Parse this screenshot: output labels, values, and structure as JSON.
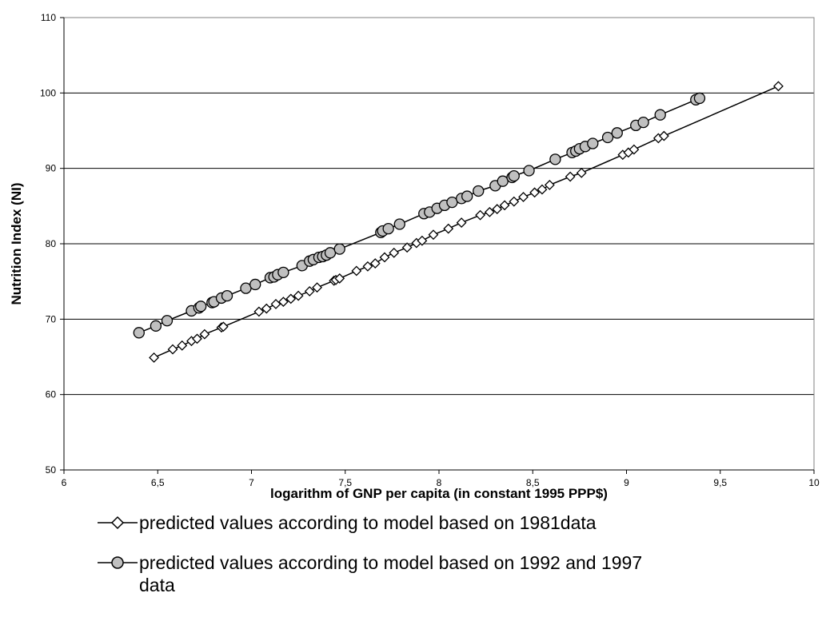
{
  "chart_data": {
    "type": "scatter",
    "xlabel": "logarithm of GNP per capita (in constant 1995 PPP$)",
    "ylabel": "Nutrition Index (NI)",
    "xlim": [
      6,
      10
    ],
    "ylim": [
      50,
      110
    ],
    "x_ticks": [
      "6",
      "6,5",
      "7",
      "7,5",
      "8",
      "8,5",
      "9",
      "9,5",
      "10"
    ],
    "y_ticks": [
      "50",
      "60",
      "70",
      "80",
      "90",
      "100",
      "110"
    ],
    "grid": "horizontal",
    "legend_position": "bottom",
    "series": [
      {
        "name": "predicted values according to model based on 1981data",
        "marker": "diamond",
        "marker_fill": "#ffffff",
        "line_color": "#000000",
        "points": [
          [
            6.48,
            64.9
          ],
          [
            6.58,
            66.0
          ],
          [
            6.63,
            66.5
          ],
          [
            6.68,
            67.1
          ],
          [
            6.71,
            67.4
          ],
          [
            6.75,
            68.0
          ],
          [
            6.84,
            68.9
          ],
          [
            6.85,
            69.0
          ],
          [
            7.04,
            71.0
          ],
          [
            7.08,
            71.4
          ],
          [
            7.13,
            72.0
          ],
          [
            7.17,
            72.3
          ],
          [
            7.21,
            72.7
          ],
          [
            7.25,
            73.1
          ],
          [
            7.31,
            73.7
          ],
          [
            7.35,
            74.2
          ],
          [
            7.44,
            75.1
          ],
          [
            7.45,
            75.2
          ],
          [
            7.47,
            75.4
          ],
          [
            7.56,
            76.4
          ],
          [
            7.62,
            77.0
          ],
          [
            7.66,
            77.4
          ],
          [
            7.71,
            78.2
          ],
          [
            7.76,
            78.8
          ],
          [
            7.83,
            79.5
          ],
          [
            7.88,
            80.1
          ],
          [
            7.91,
            80.4
          ],
          [
            7.97,
            81.2
          ],
          [
            8.05,
            82.0
          ],
          [
            8.12,
            82.8
          ],
          [
            8.22,
            83.8
          ],
          [
            8.27,
            84.2
          ],
          [
            8.31,
            84.6
          ],
          [
            8.35,
            85.1
          ],
          [
            8.4,
            85.6
          ],
          [
            8.45,
            86.2
          ],
          [
            8.51,
            86.8
          ],
          [
            8.55,
            87.2
          ],
          [
            8.59,
            87.8
          ],
          [
            8.7,
            88.9
          ],
          [
            8.76,
            89.4
          ],
          [
            8.98,
            91.8
          ],
          [
            9.01,
            92.1
          ],
          [
            9.04,
            92.5
          ],
          [
            9.17,
            94.0
          ],
          [
            9.2,
            94.3
          ],
          [
            9.81,
            100.9
          ]
        ]
      },
      {
        "name": "predicted values according to model based on 1992 and 1997 data",
        "marker": "circle",
        "marker_fill": "#c0c0c0",
        "line_color": "#000000",
        "points": [
          [
            6.4,
            68.2
          ],
          [
            6.49,
            69.1
          ],
          [
            6.55,
            69.8
          ],
          [
            6.68,
            71.1
          ],
          [
            6.72,
            71.5
          ],
          [
            6.73,
            71.7
          ],
          [
            6.79,
            72.2
          ],
          [
            6.8,
            72.3
          ],
          [
            6.84,
            72.8
          ],
          [
            6.87,
            73.1
          ],
          [
            6.97,
            74.1
          ],
          [
            7.02,
            74.6
          ],
          [
            7.1,
            75.5
          ],
          [
            7.12,
            75.6
          ],
          [
            7.14,
            75.9
          ],
          [
            7.17,
            76.2
          ],
          [
            7.27,
            77.1
          ],
          [
            7.31,
            77.7
          ],
          [
            7.33,
            77.9
          ],
          [
            7.36,
            78.2
          ],
          [
            7.38,
            78.3
          ],
          [
            7.4,
            78.5
          ],
          [
            7.42,
            78.8
          ],
          [
            7.47,
            79.3
          ],
          [
            7.69,
            81.5
          ],
          [
            7.7,
            81.7
          ],
          [
            7.73,
            82.0
          ],
          [
            7.79,
            82.6
          ],
          [
            7.92,
            84.0
          ],
          [
            7.95,
            84.2
          ],
          [
            7.99,
            84.7
          ],
          [
            8.03,
            85.1
          ],
          [
            8.07,
            85.5
          ],
          [
            8.12,
            86.0
          ],
          [
            8.15,
            86.3
          ],
          [
            8.21,
            87.0
          ],
          [
            8.3,
            87.7
          ],
          [
            8.34,
            88.3
          ],
          [
            8.39,
            88.8
          ],
          [
            8.4,
            89.0
          ],
          [
            8.48,
            89.7
          ],
          [
            8.62,
            91.2
          ],
          [
            8.71,
            92.1
          ],
          [
            8.73,
            92.3
          ],
          [
            8.75,
            92.6
          ],
          [
            8.78,
            92.9
          ],
          [
            8.82,
            93.3
          ],
          [
            8.9,
            94.1
          ],
          [
            8.95,
            94.7
          ],
          [
            9.05,
            95.7
          ],
          [
            9.09,
            96.1
          ],
          [
            9.18,
            97.1
          ],
          [
            9.37,
            99.1
          ],
          [
            9.39,
            99.3
          ]
        ]
      }
    ]
  }
}
